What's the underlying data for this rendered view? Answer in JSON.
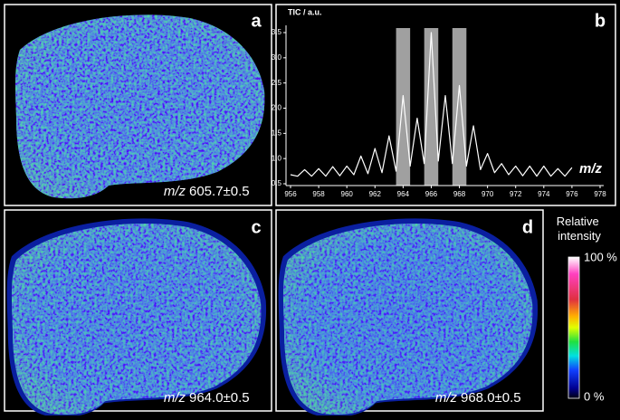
{
  "panels": [
    {
      "label": "a",
      "caption_prefix": "m/z",
      "caption": "605.7±0.5"
    },
    {
      "label": "b"
    },
    {
      "label": "c",
      "caption_prefix": "m/z",
      "caption": "964.0±0.5"
    },
    {
      "label": "d",
      "caption_prefix": "m/z",
      "caption": "968.0±0.5"
    }
  ],
  "colorbar": {
    "title": "Relative intensity",
    "max_label": "100 %",
    "min_label": "0 %"
  },
  "chart_data": {
    "type": "line",
    "y_label": "TIC / a.u.",
    "x_label": "m/z",
    "x": [
      956,
      956.5,
      957,
      957.5,
      958,
      958.5,
      959,
      959.5,
      960,
      960.5,
      961,
      961.5,
      962,
      962.5,
      963,
      963.5,
      964,
      964.5,
      965,
      965.5,
      966,
      966.5,
      967,
      967.5,
      968,
      968.5,
      969,
      969.5,
      970,
      970.5,
      971,
      971.5,
      972,
      972.5,
      973,
      973.5,
      974,
      974.5,
      975,
      975.5,
      976
    ],
    "series": [
      {
        "color": "#ffffff",
        "values": [
          0.68,
          0.65,
          0.78,
          0.65,
          0.8,
          0.65,
          0.84,
          0.66,
          0.85,
          0.68,
          1.05,
          0.7,
          1.2,
          0.72,
          1.45,
          0.75,
          2.25,
          0.85,
          1.8,
          0.9,
          3.5,
          0.95,
          2.25,
          0.9,
          2.45,
          0.85,
          1.65,
          0.78,
          1.1,
          0.72,
          0.9,
          0.68,
          0.85,
          0.66,
          0.85,
          0.65,
          0.85,
          0.65,
          0.8,
          0.65,
          0.82
        ]
      }
    ],
    "highlights": [
      [
        963.5,
        964.5
      ],
      [
        965.5,
        966.5
      ],
      [
        967.5,
        968.5
      ]
    ],
    "highlight_color": "#a0a0a0",
    "xlim": [
      956,
      978
    ],
    "ylim": [
      0.5,
      3.5
    ],
    "xticks": [
      956,
      958,
      960,
      962,
      964,
      966,
      968,
      970,
      972,
      974,
      976,
      978
    ],
    "yticks": [
      0.5,
      {
        "value": 1,
        "label": "1.0"
      },
      1.5,
      {
        "value": 2,
        "label": "2.0"
      },
      2.5,
      {
        "value": 3,
        "label": "3.0"
      },
      3.5
    ]
  }
}
